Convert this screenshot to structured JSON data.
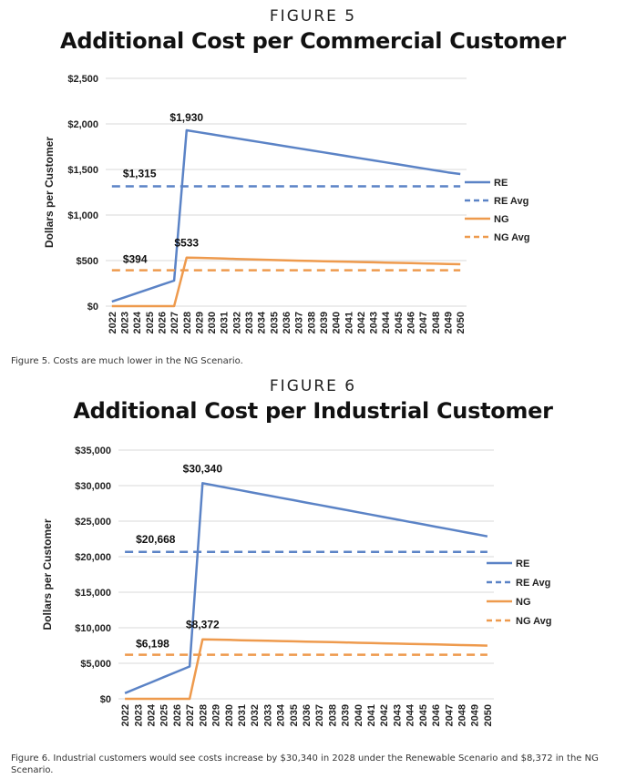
{
  "figure5": {
    "label": "FIGURE 5",
    "title": "Additional Cost per Commercial Customer",
    "caption": "Figure 5. Costs are much lower in the NG Scenario."
  },
  "figure6": {
    "label": "FIGURE 6",
    "title": "Additional Cost per Industrial Customer",
    "caption": "Figure 6. Industrial customers would see costs increase by $30,340 in 2028 under the Renewable Scenario and $8,372 in the NG Scenario."
  },
  "chart_data": [
    {
      "type": "line",
      "title": "Additional Cost per Commercial Customer",
      "xlabel": "",
      "ylabel": "Dollars per Customer",
      "ylim": [
        0,
        2500
      ],
      "yticks": [
        0,
        500,
        1000,
        1500,
        2000,
        2500
      ],
      "ytick_labels": [
        "$0",
        "$500",
        "$1,000",
        "$1,500",
        "$2,000",
        "$2,500"
      ],
      "x": [
        "2022",
        "2023",
        "2024",
        "2025",
        "2026",
        "2027",
        "2028",
        "2029",
        "2030",
        "2031",
        "2032",
        "2033",
        "2034",
        "2035",
        "2036",
        "2037",
        "2038",
        "2039",
        "2040",
        "2041",
        "2042",
        "2043",
        "2044",
        "2045",
        "2046",
        "2047",
        "2048",
        "2049",
        "2050"
      ],
      "x_tick_labels": [
        "2022",
        "2024",
        "2026",
        "2028",
        "2030",
        "2032",
        "2034",
        "2036",
        "2038",
        "2040",
        "2042",
        "2044",
        "2046",
        "2048",
        "2050",
        "2023",
        "2025",
        "2027",
        "2029",
        "2031",
        "2033",
        "2035",
        "2037",
        "2039",
        "2041",
        "2043",
        "2045",
        "2047",
        "2049"
      ],
      "grid": true,
      "legend_position": "right",
      "series": [
        {
          "name": "RE",
          "color": "#5B83C6",
          "style": "solid",
          "values": [
            50,
            96,
            142,
            188,
            234,
            280,
            1930,
            1908,
            1886,
            1864,
            1842,
            1820,
            1798,
            1776,
            1754,
            1732,
            1710,
            1688,
            1666,
            1644,
            1622,
            1600,
            1578,
            1556,
            1534,
            1512,
            1490,
            1468,
            1450
          ]
        },
        {
          "name": "RE Avg",
          "color": "#5B83C6",
          "style": "dashed",
          "constant": 1315
        },
        {
          "name": "NG",
          "color": "#EE9A4D",
          "style": "solid",
          "values": [
            0,
            0,
            0,
            0,
            0,
            0,
            533,
            530,
            526,
            522,
            518,
            514,
            510,
            506,
            502,
            499,
            496,
            493,
            490,
            487,
            484,
            481,
            478,
            475,
            472,
            469,
            466,
            463,
            460
          ]
        },
        {
          "name": "NG Avg",
          "color": "#EE9A4D",
          "style": "dashed",
          "constant": 394
        }
      ],
      "annotations": [
        {
          "text": "$1,930"
        },
        {
          "text": "$1,315"
        },
        {
          "text": "$533"
        },
        {
          "text": "$394"
        }
      ]
    },
    {
      "type": "line",
      "title": "Additional Cost per Industrial Customer",
      "xlabel": "",
      "ylabel": "Dollars per Customer",
      "ylim": [
        0,
        35000
      ],
      "yticks": [
        0,
        5000,
        10000,
        15000,
        20000,
        25000,
        30000,
        35000
      ],
      "ytick_labels": [
        "$0",
        "$5,000",
        "$10,000",
        "$15,000",
        "$20,000",
        "$25,000",
        "$30,000",
        "$35,000"
      ],
      "x": [
        "2022",
        "2023",
        "2024",
        "2025",
        "2026",
        "2027",
        "2028",
        "2029",
        "2030",
        "2031",
        "2032",
        "2033",
        "2034",
        "2035",
        "2036",
        "2037",
        "2038",
        "2039",
        "2040",
        "2041",
        "2042",
        "2043",
        "2044",
        "2045",
        "2046",
        "2047",
        "2048",
        "2049",
        "2050"
      ],
      "x_tick_labels": [
        "2022",
        "2023",
        "2024",
        "2025",
        "2026",
        "2027",
        "2028",
        "2029",
        "2030",
        "2031",
        "2032",
        "2033",
        "2034",
        "2035",
        "2036",
        "2037",
        "2038",
        "2039",
        "2040",
        "2041",
        "2042",
        "2043",
        "2044",
        "2045",
        "2046",
        "2047",
        "2048",
        "2049",
        "2050"
      ],
      "grid": true,
      "legend_position": "right",
      "series": [
        {
          "name": "RE",
          "color": "#5B83C6",
          "style": "solid",
          "values": [
            800,
            1550,
            2300,
            3050,
            3800,
            4550,
            30340,
            30000,
            29660,
            29320,
            28980,
            28640,
            28300,
            27960,
            27620,
            27280,
            26940,
            26600,
            26260,
            25920,
            25580,
            25240,
            24900,
            24560,
            24220,
            23880,
            23540,
            23200,
            22860
          ]
        },
        {
          "name": "RE Avg",
          "color": "#5B83C6",
          "style": "dashed",
          "constant": 20668
        },
        {
          "name": "NG",
          "color": "#EE9A4D",
          "style": "solid",
          "values": [
            0,
            0,
            0,
            0,
            0,
            0,
            8372,
            8330,
            8290,
            8250,
            8210,
            8170,
            8130,
            8090,
            8050,
            8010,
            7970,
            7930,
            7890,
            7850,
            7810,
            7770,
            7730,
            7690,
            7650,
            7610,
            7570,
            7530,
            7490
          ]
        },
        {
          "name": "NG Avg",
          "color": "#EE9A4D",
          "style": "dashed",
          "constant": 6198
        }
      ],
      "annotations": [
        {
          "text": "$30,340"
        },
        {
          "text": "$20,668"
        },
        {
          "text": "$8,372"
        },
        {
          "text": "$6,198"
        }
      ]
    }
  ]
}
